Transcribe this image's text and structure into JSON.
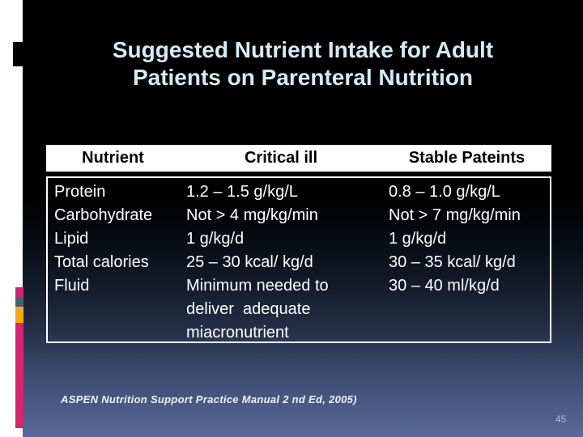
{
  "slide": {
    "title": {
      "line1": "Suggested Nutrient Intake for Adult",
      "line2": "Patients on Parenteral Nutrition"
    },
    "citation": "ASPEN Nutrition Support Practice Manual 2 nd Ed, 2005)",
    "page_number": "45"
  },
  "table": {
    "headers": [
      "Nutrient",
      "Critical ill",
      "Stable Pateints"
    ],
    "columns": [
      {
        "name": "nutrient",
        "lines": [
          "Protein",
          "Carbohydrate",
          "Lipid",
          "Total calories",
          "Fluid"
        ]
      },
      {
        "name": "critical-ill",
        "lines": [
          "1.2 – 1.5 g/kg/L",
          "Not > 4 mg/kg/min",
          "1 g/kg/d",
          "25 – 30 kcal/ kg/d",
          "Minimum needed to",
          "deliver  adequate",
          "miacronutrient"
        ]
      },
      {
        "name": "stable-patients",
        "lines": [
          "0.8 – 1.0 g/kg/L",
          "Not > 7 mg/kg/min",
          "1 g/kg/d",
          "30 – 35 kcal/ kg/d",
          "30 – 40 ml/kg/d"
        ]
      }
    ]
  },
  "colors": {
    "title_text": "#d5ebf8",
    "header_bg": "#ffffff",
    "header_text": "#000000",
    "body_text": "#ffffff",
    "accent_magenta": "#d6246e",
    "accent_gray": "#4d5d70",
    "accent_amber": "#efa918",
    "citation_text": "#f2f2f2",
    "page_number_text": "#aebfd9",
    "slide_top": "#000000",
    "slide_bottom": "#57699b",
    "frame_strip": "#ffffff"
  }
}
